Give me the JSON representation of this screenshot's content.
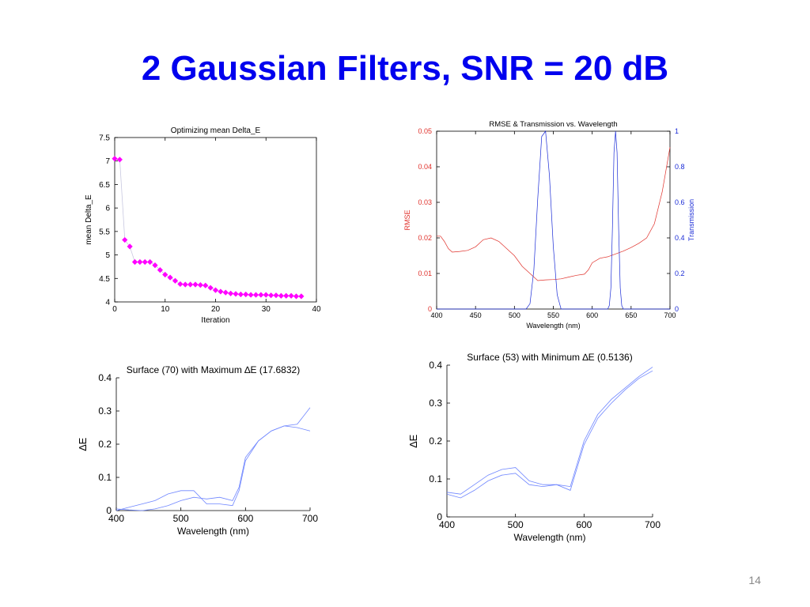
{
  "slide": {
    "title": "2 Gaussian Filters, SNR = 20 dB",
    "page_number": "14"
  },
  "colors": {
    "title": "#0000ee",
    "marker": "#ff00ff",
    "rmse": "#e0302a",
    "transmission": "#1a2bd6",
    "surface_line": "#6f86ff",
    "axis": "#000000"
  },
  "chart_data": [
    {
      "id": "optimizing",
      "type": "line",
      "title": "Optimizing mean Delta_E",
      "xlabel": "Iteration",
      "ylabel": "mean Delta_E",
      "xlim": [
        0,
        40
      ],
      "ylim": [
        4,
        7.5
      ],
      "xticks": [
        0,
        10,
        20,
        30,
        40
      ],
      "yticks": [
        4,
        4.5,
        5,
        5.5,
        6,
        6.5,
        7,
        7.5
      ],
      "grid": false,
      "series": [
        {
          "marker": "diamond",
          "x": [
            0,
            1,
            2,
            3,
            4,
            5,
            6,
            7,
            8,
            9,
            10,
            11,
            12,
            13,
            14,
            15,
            16,
            17,
            18,
            19,
            20,
            21,
            22,
            23,
            24,
            25,
            26,
            27,
            28,
            29,
            30,
            31,
            32,
            33,
            34,
            35,
            36,
            37
          ],
          "y": [
            7.05,
            7.03,
            5.32,
            5.18,
            4.85,
            4.85,
            4.85,
            4.85,
            4.78,
            4.68,
            4.58,
            4.52,
            4.45,
            4.38,
            4.37,
            4.37,
            4.37,
            4.36,
            4.35,
            4.3,
            4.25,
            4.22,
            4.2,
            4.18,
            4.17,
            4.16,
            4.16,
            4.15,
            4.15,
            4.15,
            4.15,
            4.14,
            4.14,
            4.13,
            4.13,
            4.13,
            4.12,
            4.12
          ]
        }
      ]
    },
    {
      "id": "rmse_transmission",
      "type": "line",
      "title": "RMSE & Transmission vs. Wavelength",
      "xlabel": "Wavelength (nm)",
      "ylabel": "RMSE",
      "y2label": "Transmission",
      "xlim": [
        400,
        700
      ],
      "ylim": [
        0,
        0.05
      ],
      "y2lim": [
        0,
        1
      ],
      "xticks": [
        400,
        450,
        500,
        550,
        600,
        650,
        700
      ],
      "yticks": [
        0,
        0.01,
        0.02,
        0.03,
        0.04,
        0.05
      ],
      "y2ticks": [
        0,
        0.2,
        0.4,
        0.6,
        0.8,
        1
      ],
      "grid": false,
      "series": [
        {
          "axis": "left",
          "x": [
            400,
            405,
            410,
            415,
            420,
            430,
            440,
            450,
            460,
            470,
            480,
            490,
            500,
            510,
            520,
            530,
            540,
            550,
            560,
            570,
            580,
            590,
            595,
            600,
            610,
            620,
            630,
            640,
            650,
            660,
            670,
            680,
            690,
            700
          ],
          "y": [
            0.0205,
            0.0205,
            0.019,
            0.017,
            0.016,
            0.0162,
            0.0165,
            0.0175,
            0.0195,
            0.02,
            0.019,
            0.017,
            0.015,
            0.012,
            0.01,
            0.008,
            0.0082,
            0.0083,
            0.0085,
            0.009,
            0.0095,
            0.0098,
            0.011,
            0.013,
            0.0143,
            0.0147,
            0.0155,
            0.0163,
            0.0173,
            0.0185,
            0.02,
            0.024,
            0.033,
            0.0455
          ]
        },
        {
          "axis": "right",
          "x": [
            400,
            510,
            515,
            520,
            525,
            530,
            535,
            540,
            545,
            550,
            555,
            560,
            620,
            622,
            624,
            626,
            628,
            630,
            632,
            634,
            636,
            638,
            640,
            700
          ],
          "y": [
            0,
            0,
            0,
            0.03,
            0.22,
            0.62,
            0.97,
            1.0,
            0.75,
            0.35,
            0.08,
            0,
            0,
            0.02,
            0.12,
            0.45,
            0.88,
            1.0,
            0.88,
            0.45,
            0.12,
            0.02,
            0,
            0
          ]
        }
      ]
    },
    {
      "id": "surface_max",
      "type": "line",
      "title": "Surface (70) with Maximum ∆E (17.6832)",
      "xlabel": "Wavelength (nm)",
      "ylabel": "∆E",
      "xlim": [
        400,
        700
      ],
      "ylim": [
        0,
        0.4
      ],
      "xticks": [
        400,
        500,
        600,
        700
      ],
      "yticks": [
        0,
        0.1,
        0.2,
        0.3,
        0.4
      ],
      "grid": false,
      "series": [
        {
          "x": [
            400,
            420,
            440,
            460,
            480,
            500,
            520,
            540,
            560,
            580,
            590,
            600,
            620,
            640,
            660,
            680,
            700
          ],
          "y": [
            0.0,
            0.01,
            0.02,
            0.03,
            0.05,
            0.06,
            0.06,
            0.02,
            0.02,
            0.015,
            0.06,
            0.15,
            0.21,
            0.24,
            0.255,
            0.26,
            0.31
          ]
        },
        {
          "x": [
            400,
            420,
            440,
            460,
            480,
            500,
            520,
            540,
            560,
            580,
            590,
            600,
            620,
            640,
            660,
            680,
            700
          ],
          "y": [
            0.005,
            0.002,
            0.0,
            0.005,
            0.015,
            0.03,
            0.04,
            0.035,
            0.04,
            0.03,
            0.07,
            0.16,
            0.21,
            0.24,
            0.255,
            0.25,
            0.24
          ]
        }
      ]
    },
    {
      "id": "surface_min",
      "type": "line",
      "title": "Surface (53) with Minimum ∆E (0.5136)",
      "xlabel": "Wavelength (nm)",
      "ylabel": "∆E",
      "xlim": [
        400,
        700
      ],
      "ylim": [
        0,
        0.4
      ],
      "xticks": [
        400,
        500,
        600,
        700
      ],
      "yticks": [
        0,
        0.1,
        0.2,
        0.3,
        0.4
      ],
      "grid": false,
      "series": [
        {
          "x": [
            400,
            420,
            440,
            460,
            480,
            500,
            520,
            540,
            560,
            580,
            600,
            620,
            640,
            660,
            680,
            700
          ],
          "y": [
            0.065,
            0.06,
            0.085,
            0.11,
            0.125,
            0.13,
            0.095,
            0.085,
            0.085,
            0.08,
            0.2,
            0.27,
            0.31,
            0.34,
            0.37,
            0.395
          ]
        },
        {
          "x": [
            400,
            420,
            440,
            460,
            480,
            500,
            520,
            540,
            560,
            580,
            600,
            620,
            640,
            660,
            680,
            700
          ],
          "y": [
            0.06,
            0.05,
            0.07,
            0.095,
            0.11,
            0.115,
            0.085,
            0.08,
            0.085,
            0.07,
            0.19,
            0.26,
            0.3,
            0.335,
            0.365,
            0.385
          ]
        }
      ]
    }
  ]
}
